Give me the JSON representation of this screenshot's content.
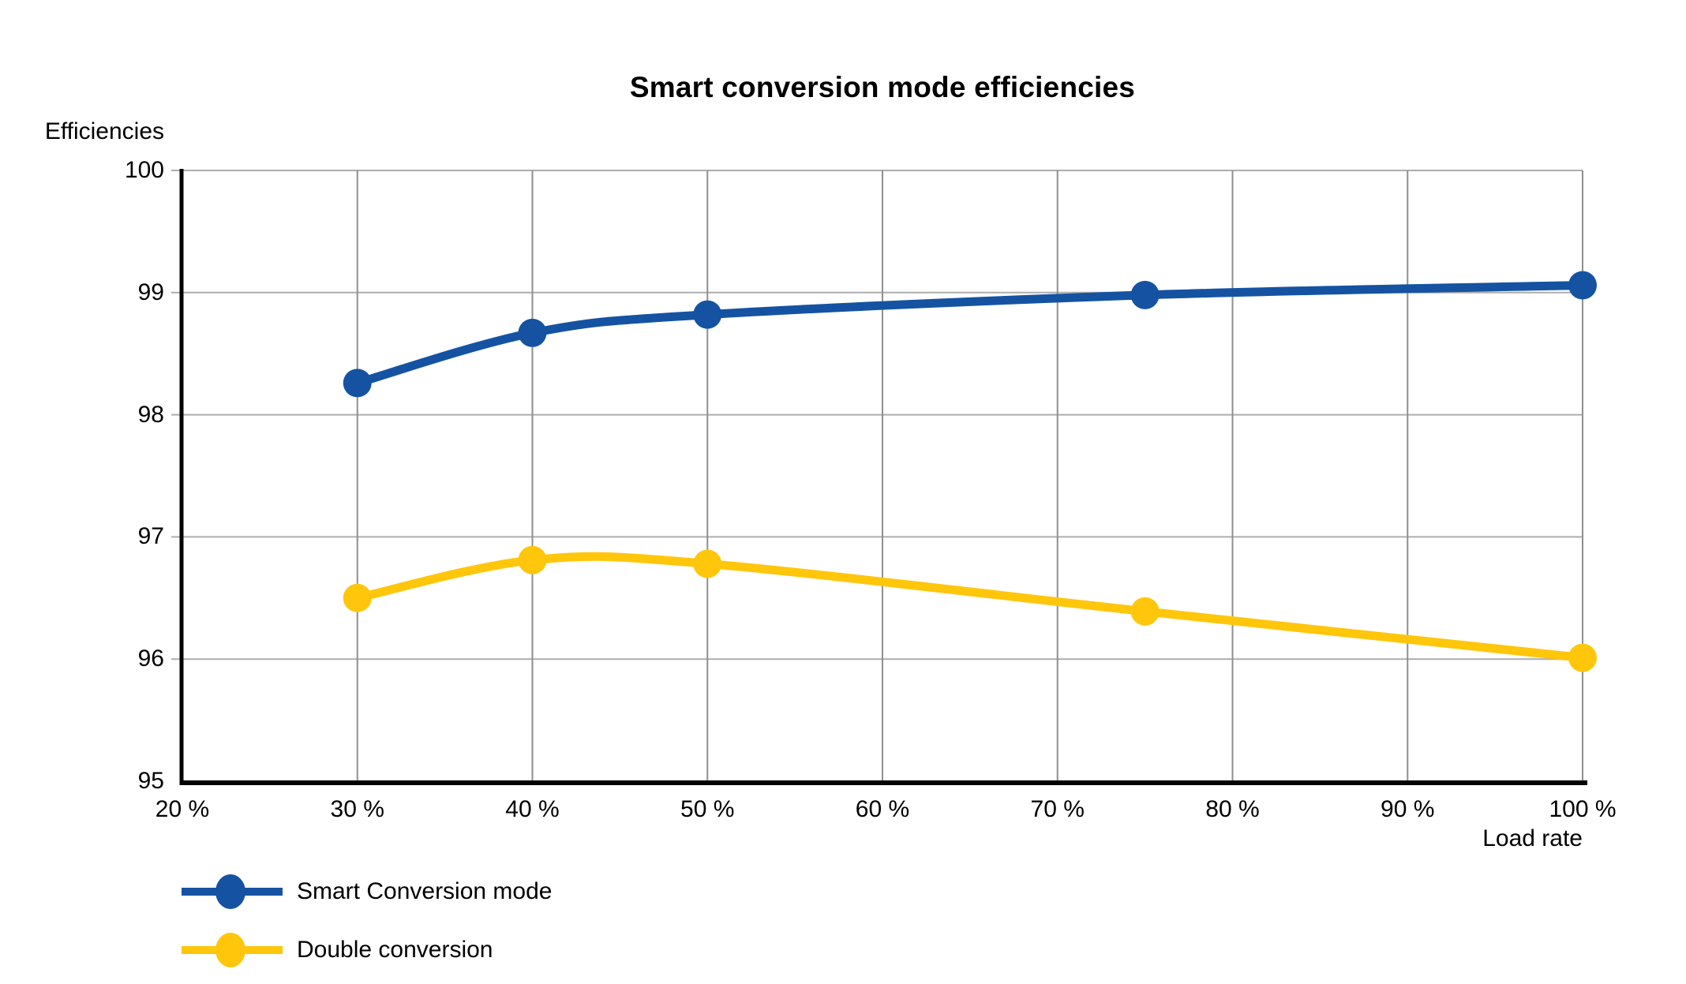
{
  "chart_data": {
    "type": "line",
    "title": "Smart conversion mode efficiencies",
    "y_axis_title": "Efficiencies",
    "x_axis_title": "Load rate",
    "xlim": [
      20,
      100
    ],
    "ylim": [
      95,
      100
    ],
    "x_tick_values": [
      20,
      30,
      40,
      50,
      60,
      70,
      80,
      90,
      100
    ],
    "x_ticks": [
      "20 %",
      "30 %",
      "40 %",
      "50 %",
      "60 %",
      "70 %",
      "80 %",
      "90 %",
      "100 %"
    ],
    "y_tick_values": [
      100,
      99,
      98,
      97,
      96,
      95
    ],
    "y_ticks": [
      "100",
      "99",
      "98",
      "97",
      "96",
      "95"
    ],
    "grid": true,
    "legend_position": "bottom-left",
    "series": [
      {
        "name": "Smart Conversion mode",
        "color": "#1553A2",
        "x": [
          30,
          40,
          50,
          75,
          100
        ],
        "values": [
          98.26,
          98.67,
          98.82,
          98.98,
          99.06
        ]
      },
      {
        "name": "Double conversion",
        "color": "#FFC60B",
        "x": [
          30,
          40,
          50,
          75,
          100
        ],
        "values": [
          96.5,
          96.81,
          96.78,
          96.39,
          96.01
        ]
      }
    ]
  }
}
